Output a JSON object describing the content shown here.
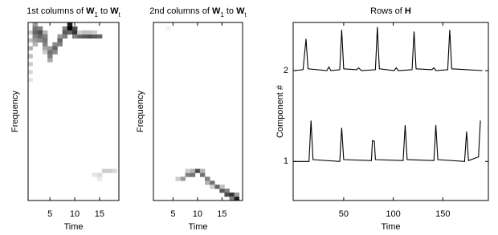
{
  "chart_data": [
    {
      "type": "heatmap",
      "title": [
        "1st columns of ",
        "W",
        "1",
        " to ",
        "W",
        "t"
      ],
      "xlabel": "Time",
      "ylabel": "Frequency",
      "xlim": [
        0.6,
        18.9
      ],
      "xticks": [
        5,
        10,
        15
      ],
      "ylim": [
        0,
        45
      ],
      "cells": [
        [
          1,
          42,
          0.2
        ],
        [
          1,
          40,
          0.25
        ],
        [
          1,
          38,
          0.3
        ],
        [
          1,
          36,
          0.25
        ],
        [
          1,
          34,
          0.2
        ],
        [
          1,
          32,
          0.15
        ],
        [
          1,
          30,
          0.1
        ],
        [
          2,
          44,
          0.4
        ],
        [
          2,
          43,
          0.55
        ],
        [
          2,
          42,
          0.6
        ],
        [
          2,
          41,
          0.5
        ],
        [
          2,
          40,
          0.4
        ],
        [
          2,
          39,
          0.3
        ],
        [
          3,
          43,
          0.5
        ],
        [
          3,
          42,
          0.7
        ],
        [
          3,
          41,
          0.6
        ],
        [
          3,
          40,
          0.45
        ],
        [
          4,
          42,
          0.3
        ],
        [
          4,
          41,
          0.5
        ],
        [
          4,
          40,
          0.55
        ],
        [
          4,
          39,
          0.5
        ],
        [
          4,
          38,
          0.35
        ],
        [
          4,
          37,
          0.2
        ],
        [
          5,
          38,
          0.4
        ],
        [
          5,
          37,
          0.55
        ],
        [
          5,
          36,
          0.5
        ],
        [
          5,
          35,
          0.35
        ],
        [
          6,
          39,
          0.45
        ],
        [
          6,
          38,
          0.6
        ],
        [
          6,
          37,
          0.45
        ],
        [
          7,
          41,
          0.4
        ],
        [
          7,
          40,
          0.6
        ],
        [
          7,
          39,
          0.5
        ],
        [
          8,
          43,
          0.5
        ],
        [
          8,
          42,
          0.65
        ],
        [
          8,
          41,
          0.5
        ],
        [
          9,
          44,
          0.9
        ],
        [
          9,
          43,
          1.0
        ],
        [
          9,
          42,
          0.6
        ],
        [
          10,
          43,
          0.7
        ],
        [
          10,
          42,
          0.8
        ],
        [
          10,
          41,
          0.5
        ],
        [
          11,
          41,
          0.6
        ],
        [
          12,
          41,
          0.65
        ],
        [
          13,
          41,
          0.7
        ],
        [
          14,
          41,
          0.65
        ],
        [
          15,
          41,
          0.6
        ],
        [
          11,
          42,
          0.2
        ],
        [
          12,
          42,
          0.25
        ],
        [
          13,
          42,
          0.25
        ],
        [
          14,
          42,
          0.2
        ],
        [
          14,
          6,
          0.1
        ],
        [
          15,
          6,
          0.15
        ],
        [
          16,
          7,
          0.2
        ],
        [
          17,
          7,
          0.2
        ],
        [
          18,
          7,
          0.15
        ],
        [
          15,
          5,
          0.08
        ]
      ]
    },
    {
      "type": "heatmap",
      "title": [
        "2nd columns of ",
        "W",
        "1",
        " to ",
        "W",
        "t"
      ],
      "xlabel": "Time",
      "ylabel": "Frequency",
      "xlim": [
        1,
        19.2
      ],
      "xticks": [
        5,
        10,
        15
      ],
      "ylim": [
        0,
        45
      ],
      "cells": [
        [
          7,
          5,
          0.4
        ],
        [
          8,
          6,
          0.5
        ],
        [
          9,
          6,
          0.55
        ],
        [
          9,
          7,
          0.3
        ],
        [
          10,
          7,
          0.7
        ],
        [
          11,
          6,
          0.55
        ],
        [
          12,
          5,
          0.5
        ],
        [
          12,
          4,
          0.3
        ],
        [
          13,
          4,
          0.55
        ],
        [
          14,
          3,
          0.6
        ],
        [
          15,
          2,
          0.65
        ],
        [
          16,
          2,
          0.5
        ],
        [
          16,
          1,
          0.7
        ],
        [
          17,
          1,
          0.8
        ],
        [
          17,
          0,
          0.5
        ],
        [
          18,
          0,
          0.9
        ],
        [
          18,
          1,
          0.4
        ],
        [
          6,
          5,
          0.2
        ],
        [
          8,
          7,
          0.2
        ],
        [
          11,
          7,
          0.3
        ],
        [
          13,
          3,
          0.2
        ],
        [
          15,
          3,
          0.25
        ],
        [
          4,
          43,
          0.05
        ]
      ]
    },
    {
      "type": "line",
      "title": [
        "Rows of ",
        "H"
      ],
      "xlabel": "Time",
      "ylabel": "Component #",
      "xlim": [
        -1,
        196
      ],
      "xticks": [
        50,
        100,
        150
      ],
      "ylim": [
        0.57,
        2.53
      ],
      "yticks": [
        1,
        2
      ],
      "color": "#000000",
      "series": [
        {
          "x": [
            0,
            15,
            17,
            19,
            46,
            48,
            50,
            78,
            79,
            81,
            82,
            110,
            112,
            114,
            141,
            143,
            145,
            172,
            174,
            176,
            186,
            188
          ],
          "values": [
            1,
            1.0,
            1.45,
            1.02,
            1.0,
            1.37,
            1.02,
            1.01,
            1.23,
            1.22,
            1.02,
            1.01,
            1.4,
            1.02,
            1.01,
            1.4,
            1.02,
            1.0,
            1.33,
            1.01,
            1.05,
            1.45
          ]
        },
        {
          "x": [
            0,
            9,
            12,
            14,
            33,
            35,
            37,
            46,
            48,
            50,
            63,
            65,
            68,
            82,
            84,
            86,
            101,
            103,
            105,
            119,
            121,
            123,
            139,
            141,
            143,
            155,
            157,
            159,
            190
          ],
          "values": [
            2,
            2.01,
            2.35,
            2.02,
            2.0,
            2.04,
            2.0,
            2.01,
            2.45,
            2.02,
            2.01,
            2.03,
            2.0,
            2.01,
            2.48,
            2.02,
            2.0,
            2.03,
            2.0,
            2.01,
            2.43,
            2.02,
            2.01,
            2.03,
            2.0,
            2.01,
            2.45,
            2.02,
            2.0
          ]
        }
      ]
    }
  ]
}
